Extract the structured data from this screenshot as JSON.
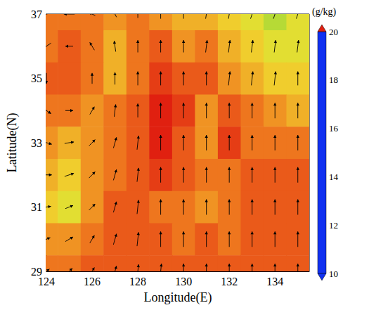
{
  "chart_data": {
    "type": "heatmap",
    "x_label": "Longitude(E)",
    "y_label": "Latitude(N)",
    "xlim": [
      124,
      135.5
    ],
    "xticks": [
      124,
      126,
      128,
      130,
      132,
      134
    ],
    "ylim": [
      29,
      37
    ],
    "yticks": [
      29,
      31,
      33,
      35,
      37
    ],
    "lon": [
      124,
      125,
      126,
      127,
      128,
      129,
      130,
      131,
      132,
      133,
      134,
      135
    ],
    "lat": [
      37,
      36,
      35,
      34,
      33,
      32,
      31,
      30,
      29
    ],
    "q": [
      [
        18.5,
        18.5,
        18.5,
        18.0,
        18.5,
        18.0,
        17.5,
        17.5,
        17.0,
        16.5,
        16.0,
        16.5
      ],
      [
        18.5,
        19.0,
        18.5,
        17.5,
        18.5,
        19.0,
        18.0,
        18.5,
        17.5,
        17.0,
        16.5,
        16.5
      ],
      [
        19.0,
        19.0,
        18.5,
        17.5,
        18.5,
        19.5,
        19.0,
        19.0,
        18.0,
        17.5,
        17.0,
        17.0
      ],
      [
        18.5,
        18.5,
        18.0,
        18.5,
        19.0,
        20.0,
        19.5,
        18.0,
        19.0,
        18.5,
        18.0,
        17.5
      ],
      [
        18.0,
        17.5,
        18.0,
        18.5,
        19.0,
        20.0,
        19.0,
        18.0,
        19.5,
        18.5,
        18.5,
        18.5
      ],
      [
        17.5,
        17.0,
        18.0,
        18.5,
        19.0,
        19.5,
        19.0,
        18.5,
        18.5,
        19.0,
        19.0,
        19.0
      ],
      [
        17.0,
        16.5,
        18.0,
        19.0,
        19.0,
        18.5,
        18.5,
        18.0,
        18.5,
        19.0,
        19.0,
        19.0
      ],
      [
        18.0,
        18.0,
        18.5,
        19.0,
        19.0,
        19.0,
        18.5,
        19.0,
        18.5,
        19.0,
        19.0,
        19.0
      ],
      [
        18.5,
        18.5,
        19.0,
        19.0,
        19.0,
        19.0,
        19.0,
        19.0,
        19.0,
        19.0,
        19.0,
        19.0
      ]
    ],
    "wind_u": [
      [
        -8,
        -7,
        -4,
        -2,
        0,
        0,
        0,
        1,
        1,
        2,
        2,
        2
      ],
      [
        -6,
        -5,
        -3,
        -1,
        0,
        0,
        0,
        1,
        1,
        1,
        1,
        1
      ],
      [
        0,
        0,
        0,
        0,
        0,
        0,
        0,
        0,
        1,
        1,
        1,
        0
      ],
      [
        6,
        5,
        3,
        1,
        0,
        0,
        0,
        0,
        0,
        0,
        0,
        0
      ],
      [
        7,
        6,
        4,
        2,
        1,
        0,
        0,
        0,
        0,
        0,
        0,
        0
      ],
      [
        7,
        6,
        4,
        2,
        1,
        0,
        0,
        0,
        0,
        0,
        0,
        0
      ],
      [
        6,
        5,
        4,
        2,
        1,
        0,
        0,
        0,
        0,
        0,
        0,
        0
      ],
      [
        5,
        5,
        3,
        2,
        1,
        0,
        0,
        0,
        0,
        0,
        0,
        0
      ],
      [
        4,
        4,
        3,
        2,
        1,
        1,
        0,
        0,
        0,
        0,
        0,
        0
      ]
    ],
    "wind_v": [
      [
        -2,
        0,
        2,
        4,
        5,
        6,
        6,
        6,
        6,
        6,
        6,
        6
      ],
      [
        -4,
        0,
        5,
        7,
        8,
        8,
        8,
        8,
        8,
        8,
        8,
        8
      ],
      [
        -7,
        0,
        7,
        8,
        9,
        9,
        9,
        9,
        9,
        9,
        9,
        9
      ],
      [
        -4,
        0,
        5,
        8,
        9,
        10,
        10,
        10,
        10,
        10,
        10,
        10
      ],
      [
        -2,
        1,
        4,
        7,
        9,
        10,
        10,
        10,
        10,
        10,
        10,
        10
      ],
      [
        0,
        2,
        4,
        7,
        9,
        10,
        10,
        10,
        10,
        10,
        10,
        10
      ],
      [
        1,
        2,
        4,
        7,
        9,
        10,
        10,
        10,
        10,
        10,
        10,
        10
      ],
      [
        2,
        3,
        5,
        7,
        9,
        10,
        10,
        10,
        10,
        10,
        10,
        10
      ],
      [
        3,
        4,
        5,
        7,
        9,
        10,
        10,
        10,
        10,
        10,
        10,
        10
      ]
    ],
    "colorbar": {
      "label": "(g/kg)",
      "range": [
        10,
        20
      ],
      "ticks": [
        10,
        12,
        14,
        16,
        18,
        20
      ]
    }
  }
}
